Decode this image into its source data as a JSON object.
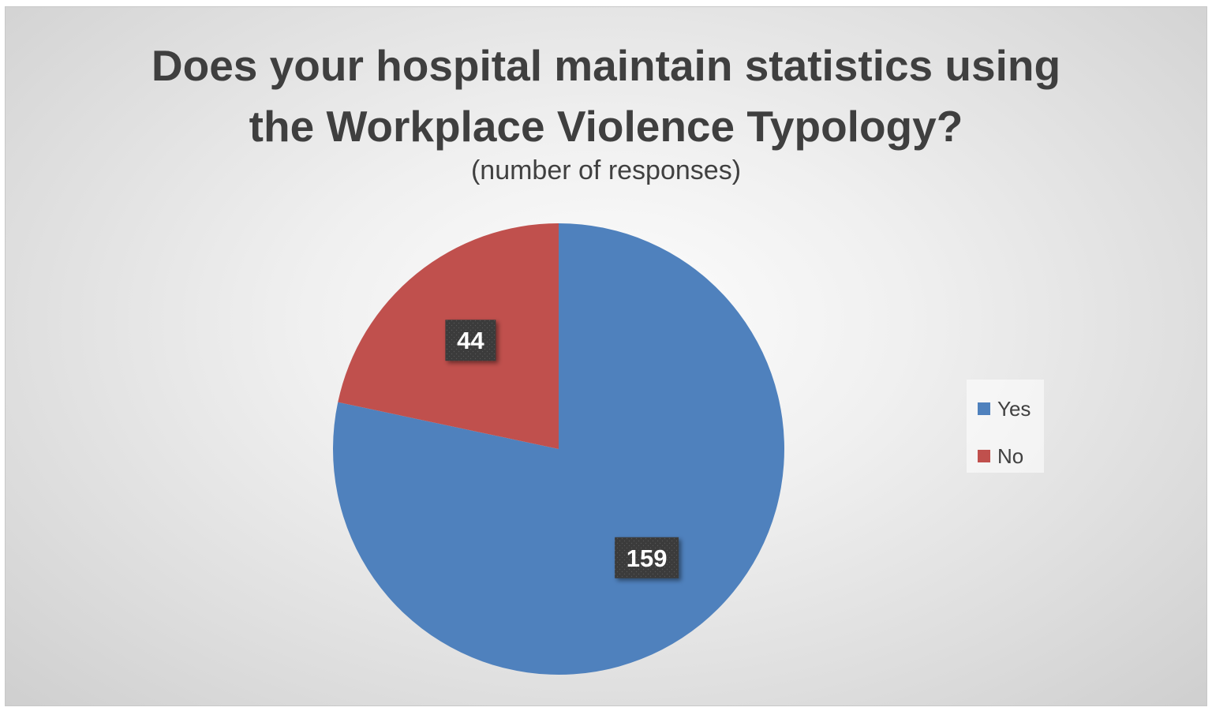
{
  "chart_data": {
    "type": "pie",
    "title_lines": [
      "Does your hospital maintain statistics using",
      "the Workplace Violence Typology?"
    ],
    "subtitle": "(number of responses)",
    "categories": [
      "Yes",
      "No"
    ],
    "values": [
      159,
      44
    ],
    "colors": [
      "#4F81BD",
      "#C0504D"
    ],
    "data_labels": [
      "159",
      "44"
    ],
    "legend_position": "right"
  }
}
